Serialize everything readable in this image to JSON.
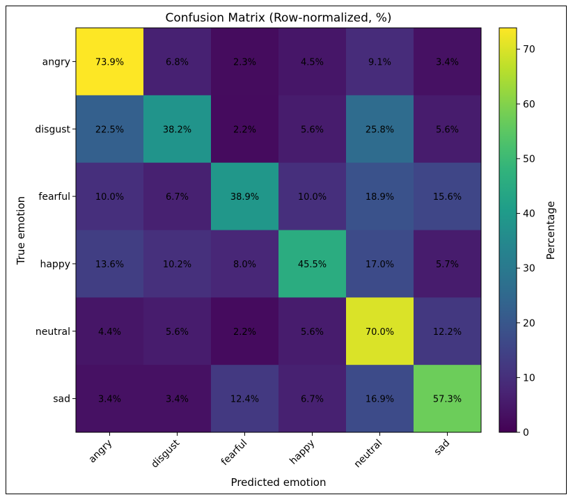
{
  "chart_data": {
    "type": "heatmap",
    "title": "Confusion Matrix (Row-normalized, %)",
    "xlabel": "Predicted emotion",
    "ylabel": "True emotion",
    "x_categories": [
      "angry",
      "disgust",
      "fearful",
      "happy",
      "neutral",
      "sad"
    ],
    "y_categories": [
      "angry",
      "disgust",
      "fearful",
      "happy",
      "neutral",
      "sad"
    ],
    "values": [
      [
        73.9,
        6.8,
        2.3,
        4.5,
        9.1,
        3.4
      ],
      [
        22.5,
        38.2,
        2.2,
        5.6,
        25.8,
        5.6
      ],
      [
        10.0,
        6.7,
        38.9,
        10.0,
        18.9,
        15.6
      ],
      [
        13.6,
        10.2,
        8.0,
        45.5,
        17.0,
        5.7
      ],
      [
        4.4,
        5.6,
        2.2,
        5.6,
        70.0,
        12.2
      ],
      [
        3.4,
        3.4,
        12.4,
        6.7,
        16.9,
        57.3
      ]
    ],
    "value_suffix": "%",
    "colormap": "viridis",
    "vmin": 0,
    "vmax": 73.9,
    "colorbar": {
      "label": "Percentage",
      "ticks": [
        0,
        10,
        20,
        30,
        40,
        50,
        60,
        70
      ]
    }
  }
}
